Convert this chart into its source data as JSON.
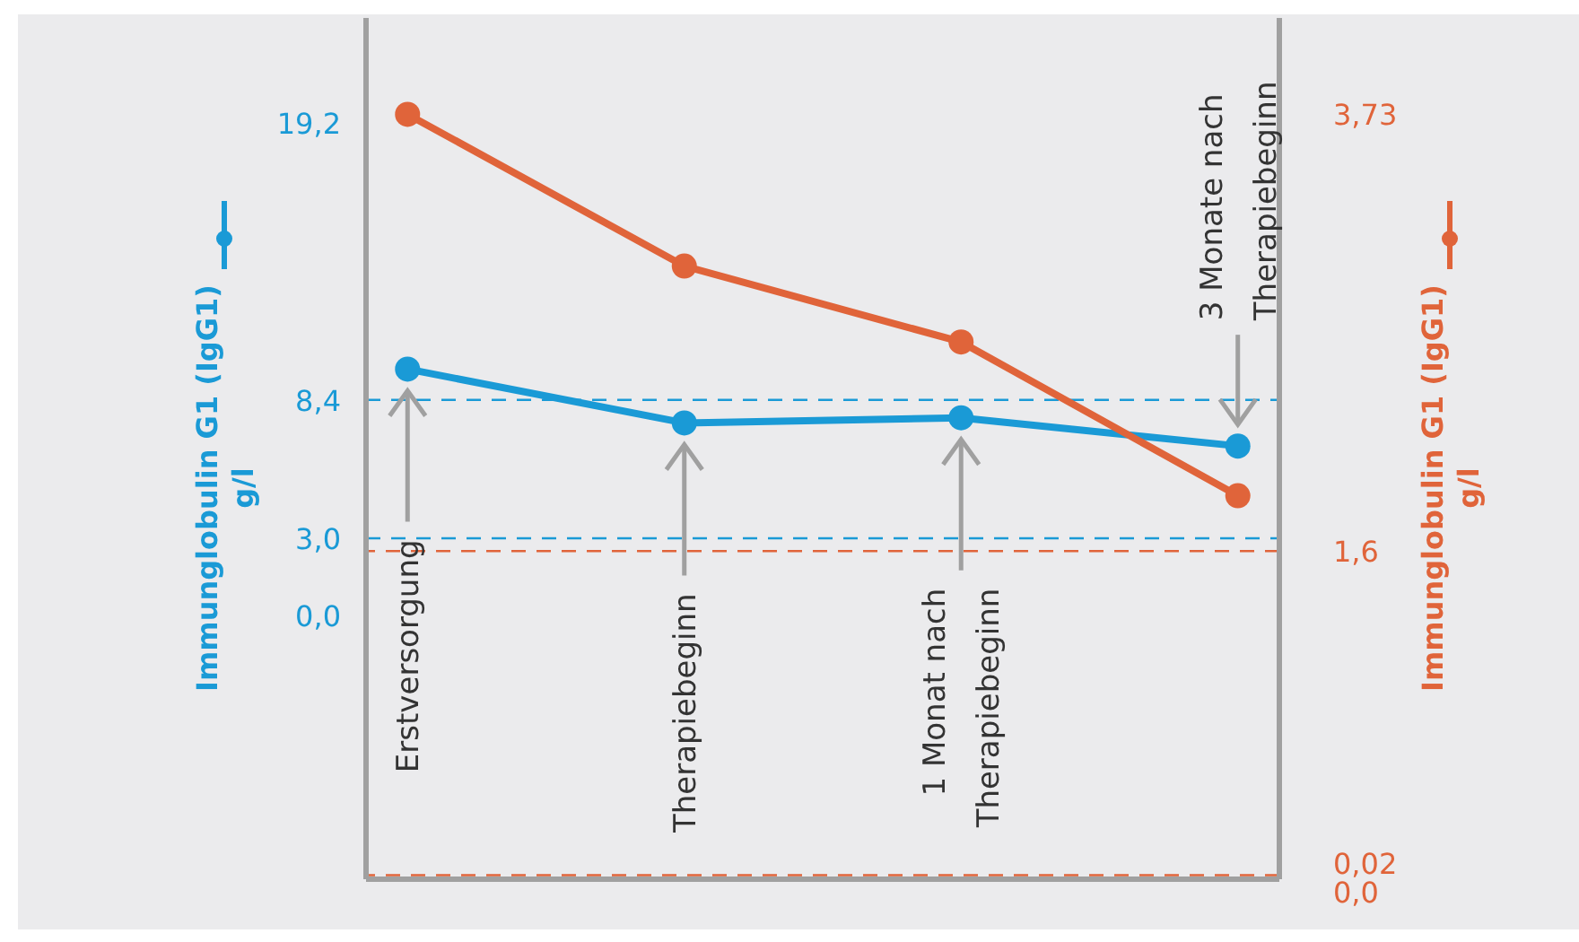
{
  "chart_data": {
    "type": "line",
    "categories": [
      "Erstversorgung",
      "Therapiebeginn",
      "1 Monat nach Therapiebeginn",
      "3 Monate nach Therapiebeginn"
    ],
    "series": [
      {
        "color": "#1a9ad6",
        "values": [
          9.6,
          7.5,
          7.7,
          6.6
        ]
      },
      {
        "color": "#e0643a",
        "values": [
          3.73,
          2.99,
          2.62,
          1.87
        ],
        "axis": "y2"
      }
    ],
    "ylabel": "Immunglobulin G1 (IgG1) g/l",
    "y2label": "Immunglobulin G1 (IgG1) g/l",
    "ylim": [
      -10.3,
      23.3
    ],
    "yticks": [
      {
        "value": 0,
        "label": "0,0"
      },
      {
        "value": 3,
        "label": "3,0"
      },
      {
        "value": 8.4,
        "label": "8,4"
      },
      {
        "value": 19.2,
        "label": "19,2"
      }
    ],
    "y2lim": [
      0,
      4.2
    ],
    "y2ticks": [
      {
        "value": 0,
        "label": "0,0"
      },
      {
        "value": 0.02,
        "label": "0,02"
      },
      {
        "value": 1.6,
        "label": "1,6"
      },
      {
        "value": 3.73,
        "label": "3,73"
      }
    ],
    "ref_lines": [
      {
        "axis": "y",
        "value": 8.4,
        "color": "#1a9ad6",
        "line_style": "dashed"
      },
      {
        "axis": "y",
        "value": 3,
        "color": "#1a9ad6",
        "line_style": "dashed"
      },
      {
        "axis": "y2",
        "value": 1.6,
        "color": "#e0643a",
        "line_style": "dashed"
      },
      {
        "axis": "y2",
        "value": 0.02,
        "color": "#e0643a",
        "line_style": "dashed"
      }
    ],
    "marker": "circle",
    "line_style": "solid",
    "grid": false,
    "legend": false
  }
}
